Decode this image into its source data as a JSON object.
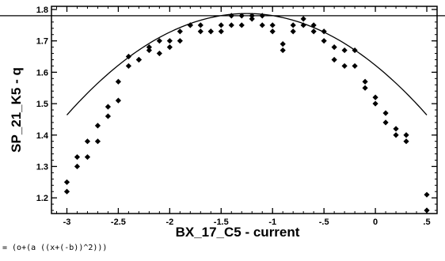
{
  "chart_data": {
    "type": "scatter",
    "title": "",
    "xlabel": "BX_17_C5 - current",
    "ylabel": "SP_21_K5 - q",
    "xlim": [
      -3.15,
      0.6
    ],
    "ylim": [
      1.15,
      1.81
    ],
    "x_ticks": [
      -3,
      -2.5,
      -2,
      -1.5,
      -1,
      -0.5,
      0,
      0.5
    ],
    "x_tick_labels": [
      "-3",
      "-2.5",
      "-2",
      "-1.5",
      "-1",
      "-.5",
      "0",
      ".5"
    ],
    "y_ticks": [
      1.2,
      1.3,
      1.4,
      1.5,
      1.6,
      1.7,
      1.8
    ],
    "y_tick_labels": [
      "1.2",
      "1.3",
      "1.4",
      "1.5",
      "1.6",
      "1.7",
      "1.8"
    ],
    "grid": false,
    "reference_line": {
      "y": 1.78
    },
    "fit_formula": "= (o+(a ((x+(-b))^2)))",
    "fit": {
      "o": 1.787,
      "a": -0.1055,
      "b": -1.25,
      "x_range": [
        -3,
        0.5
      ]
    },
    "points": [
      {
        "x": -3.0,
        "y": 1.25
      },
      {
        "x": -3.0,
        "y": 1.22
      },
      {
        "x": -2.9,
        "y": 1.3
      },
      {
        "x": -2.9,
        "y": 1.33
      },
      {
        "x": -2.8,
        "y": 1.38
      },
      {
        "x": -2.8,
        "y": 1.33
      },
      {
        "x": -2.7,
        "y": 1.43
      },
      {
        "x": -2.7,
        "y": 1.38
      },
      {
        "x": -2.6,
        "y": 1.46
      },
      {
        "x": -2.6,
        "y": 1.49
      },
      {
        "x": -2.5,
        "y": 1.51
      },
      {
        "x": -2.5,
        "y": 1.57
      },
      {
        "x": -2.4,
        "y": 1.62
      },
      {
        "x": -2.4,
        "y": 1.65
      },
      {
        "x": -2.3,
        "y": 1.64
      },
      {
        "x": -2.3,
        "y": 1.64
      },
      {
        "x": -2.2,
        "y": 1.67
      },
      {
        "x": -2.2,
        "y": 1.68
      },
      {
        "x": -2.1,
        "y": 1.66
      },
      {
        "x": -2.1,
        "y": 1.7
      },
      {
        "x": -2.0,
        "y": 1.7
      },
      {
        "x": -2.0,
        "y": 1.68
      },
      {
        "x": -1.9,
        "y": 1.7
      },
      {
        "x": -1.9,
        "y": 1.73
      },
      {
        "x": -1.8,
        "y": 1.75
      },
      {
        "x": -1.8,
        "y": 1.75
      },
      {
        "x": -1.7,
        "y": 1.73
      },
      {
        "x": -1.7,
        "y": 1.75
      },
      {
        "x": -1.6,
        "y": 1.73
      },
      {
        "x": -1.6,
        "y": 1.73
      },
      {
        "x": -1.5,
        "y": 1.75
      },
      {
        "x": -1.5,
        "y": 1.73
      },
      {
        "x": -1.4,
        "y": 1.78
      },
      {
        "x": -1.4,
        "y": 1.75
      },
      {
        "x": -1.3,
        "y": 1.78
      },
      {
        "x": -1.3,
        "y": 1.75
      },
      {
        "x": -1.2,
        "y": 1.77
      },
      {
        "x": -1.2,
        "y": 1.78
      },
      {
        "x": -1.1,
        "y": 1.78
      },
      {
        "x": -1.1,
        "y": 1.75
      },
      {
        "x": -1.0,
        "y": 1.73
      },
      {
        "x": -1.0,
        "y": 1.75
      },
      {
        "x": -0.9,
        "y": 1.67
      },
      {
        "x": -0.9,
        "y": 1.69
      },
      {
        "x": -0.8,
        "y": 1.73
      },
      {
        "x": -0.8,
        "y": 1.75
      },
      {
        "x": -0.7,
        "y": 1.77
      },
      {
        "x": -0.7,
        "y": 1.75
      },
      {
        "x": -0.6,
        "y": 1.75
      },
      {
        "x": -0.6,
        "y": 1.73
      },
      {
        "x": -0.5,
        "y": 1.73
      },
      {
        "x": -0.5,
        "y": 1.7
      },
      {
        "x": -0.4,
        "y": 1.64
      },
      {
        "x": -0.4,
        "y": 1.68
      },
      {
        "x": -0.3,
        "y": 1.67
      },
      {
        "x": -0.3,
        "y": 1.62
      },
      {
        "x": -0.2,
        "y": 1.67
      },
      {
        "x": -0.2,
        "y": 1.62
      },
      {
        "x": -0.1,
        "y": 1.57
      },
      {
        "x": -0.1,
        "y": 1.55
      },
      {
        "x": 0.0,
        "y": 1.5
      },
      {
        "x": 0.0,
        "y": 1.52
      },
      {
        "x": 0.1,
        "y": 1.47
      },
      {
        "x": 0.1,
        "y": 1.44
      },
      {
        "x": 0.2,
        "y": 1.42
      },
      {
        "x": 0.2,
        "y": 1.4
      },
      {
        "x": 0.3,
        "y": 1.4
      },
      {
        "x": 0.3,
        "y": 1.38
      },
      {
        "x": 0.5,
        "y": 1.21
      },
      {
        "x": 0.5,
        "y": 1.16
      }
    ]
  }
}
